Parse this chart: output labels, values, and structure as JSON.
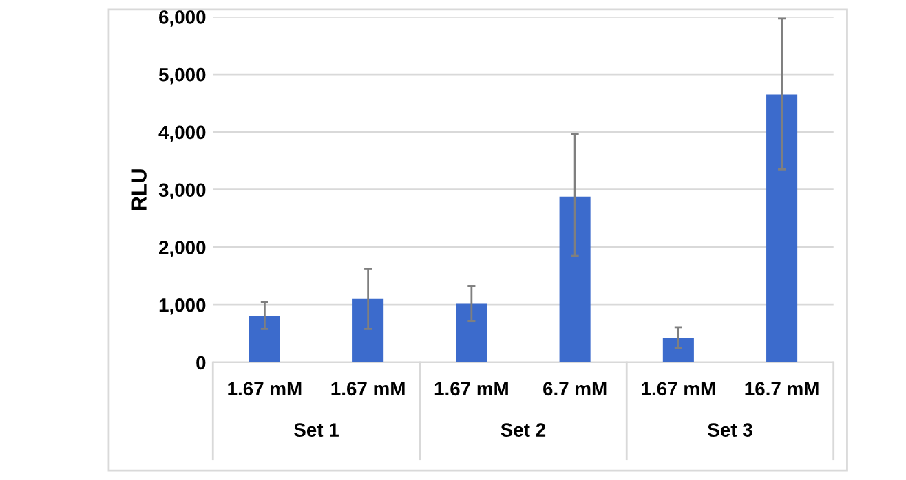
{
  "chart_data": {
    "type": "bar",
    "ylabel": "RLU",
    "categories": [
      "1.67 mM",
      "1.67 mM",
      "1.67 mM",
      "6.7 mM",
      "1.67 mM",
      "16.7 mM"
    ],
    "values": [
      800,
      1100,
      1020,
      2880,
      420,
      4650
    ],
    "errors": [
      [
        580,
        1050
      ],
      [
        580,
        1630
      ],
      [
        720,
        1320
      ],
      [
        1850,
        3960
      ],
      [
        250,
        610
      ],
      [
        3350,
        5970
      ]
    ],
    "color": "#3c6bcc",
    "annotations": [
      "Set 1",
      "Set 2",
      "Set 3"
    ],
    "ylim": [
      0,
      6000
    ],
    "yticks": [
      {
        "value": 0,
        "label": "0"
      },
      {
        "value": 1000,
        "label": "1,000"
      },
      {
        "value": 2000,
        "label": "2,000"
      },
      {
        "value": 3000,
        "label": "3,000"
      },
      {
        "value": 4000,
        "label": "4,000"
      },
      {
        "value": 5000,
        "label": "5,000"
      },
      {
        "value": 6000,
        "label": "6,000"
      }
    ],
    "grid": "y"
  }
}
